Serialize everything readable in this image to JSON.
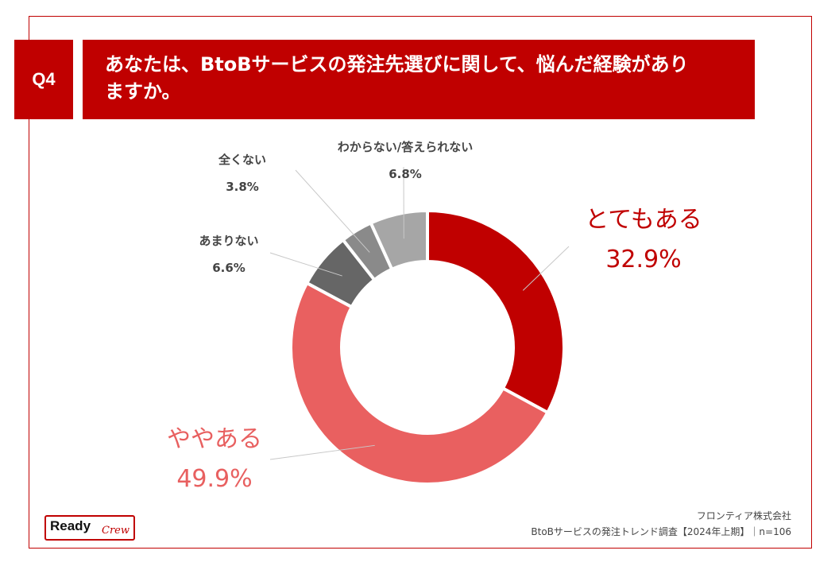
{
  "question": {
    "number": "Q4",
    "text_line1": "あなたは、BtoBサービスの発注先選びに関して、悩んだ経験があり",
    "text_line2": "ますか。"
  },
  "chart_data": {
    "type": "pie",
    "donut": true,
    "categories": [
      "とてもある",
      "ややある",
      "あまりない",
      "全くない",
      "わからない/答えられない"
    ],
    "values": [
      32.9,
      49.9,
      6.6,
      3.8,
      6.8
    ],
    "value_labels": [
      "32.9%",
      "49.9%",
      "6.6%",
      "3.8%",
      "6.8%"
    ],
    "colors": [
      "#c00000",
      "#e96060",
      "#666666",
      "#8a8a8a",
      "#a6a6a6"
    ],
    "start": "12 o'clock",
    "direction": "clockwise"
  },
  "footer": {
    "logo_word1": "Ready",
    "logo_word2": "Crew",
    "company": "フロンティア株式会社",
    "survey": "BtoBサービスの発注トレンド調査【2024年上期】｜n=106"
  }
}
